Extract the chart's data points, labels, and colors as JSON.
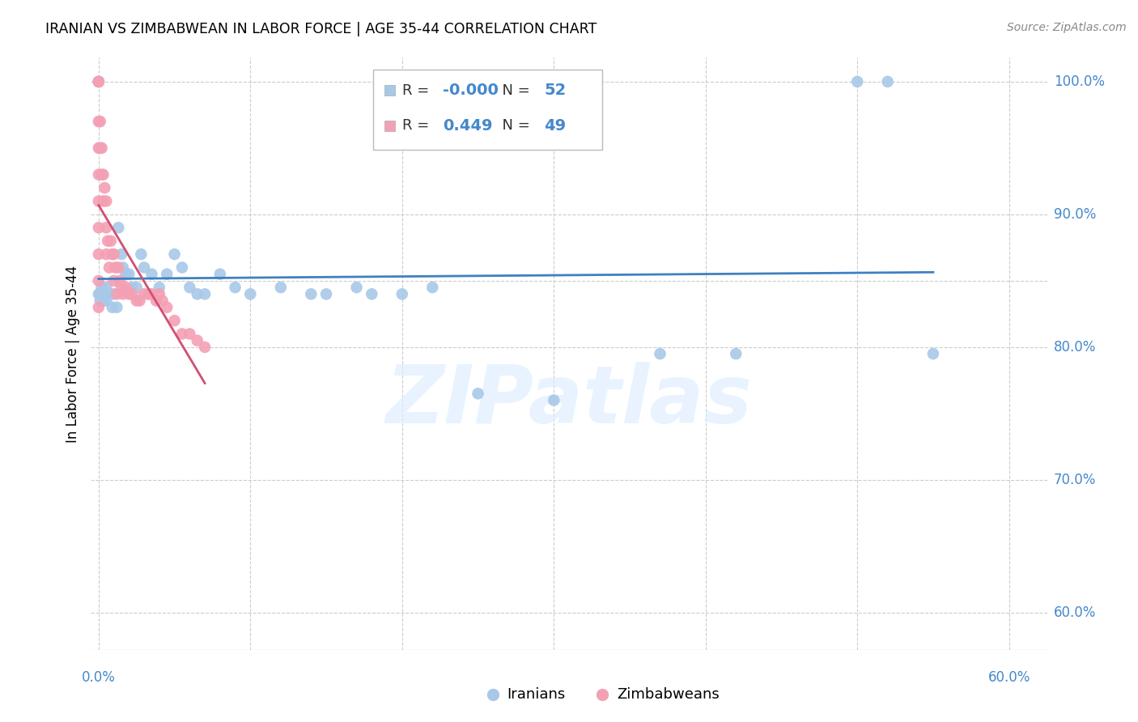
{
  "title": "IRANIAN VS ZIMBABWEAN IN LABOR FORCE | AGE 35-44 CORRELATION CHART",
  "source_text": "Source: ZipAtlas.com",
  "ylabel": "In Labor Force | Age 35-44",
  "xlim": [
    -0.005,
    0.625
  ],
  "ylim": [
    0.572,
    1.018
  ],
  "ytick_vals": [
    0.6,
    0.7,
    0.8,
    0.85,
    0.9,
    1.0
  ],
  "xtick_vals": [
    0.0,
    0.1,
    0.2,
    0.3,
    0.4,
    0.5,
    0.6
  ],
  "legend_r_iranian": "-0.000",
  "legend_n_iranian": "52",
  "legend_r_zimbabwean": "0.449",
  "legend_n_zimbabwean": "49",
  "watermark": "ZIPatlas",
  "iranian_color": "#a8c8e8",
  "zimbabwean_color": "#f4a0b4",
  "iranian_trend_color": "#4080c0",
  "zimbabwean_trend_color": "#d05070",
  "iranian_x": [
    0.0,
    0.0,
    0.0,
    0.001,
    0.001,
    0.002,
    0.003,
    0.003,
    0.004,
    0.005,
    0.005,
    0.006,
    0.007,
    0.008,
    0.009,
    0.01,
    0.012,
    0.013,
    0.015,
    0.016,
    0.018,
    0.02,
    0.022,
    0.025,
    0.028,
    0.03,
    0.033,
    0.035,
    0.04,
    0.045,
    0.05,
    0.055,
    0.06,
    0.065,
    0.07,
    0.08,
    0.09,
    0.1,
    0.12,
    0.14,
    0.15,
    0.17,
    0.18,
    0.2,
    0.22,
    0.25,
    0.3,
    0.37,
    0.42,
    0.5,
    0.52,
    0.55
  ],
  "iranian_y": [
    1.0,
    1.0,
    0.84,
    0.84,
    0.835,
    0.845,
    0.84,
    0.835,
    0.84,
    0.845,
    0.835,
    0.84,
    0.84,
    0.84,
    0.83,
    0.84,
    0.83,
    0.89,
    0.87,
    0.86,
    0.855,
    0.855,
    0.845,
    0.845,
    0.87,
    0.86,
    0.84,
    0.855,
    0.845,
    0.855,
    0.87,
    0.86,
    0.845,
    0.84,
    0.84,
    0.855,
    0.845,
    0.84,
    0.845,
    0.84,
    0.84,
    0.845,
    0.84,
    0.84,
    0.845,
    0.765,
    0.76,
    0.795,
    0.795,
    1.0,
    1.0,
    0.795
  ],
  "zimbabwean_x": [
    0.0,
    0.0,
    0.0,
    0.0,
    0.0,
    0.0,
    0.0,
    0.0,
    0.0,
    0.0,
    0.001,
    0.001,
    0.002,
    0.002,
    0.003,
    0.003,
    0.004,
    0.005,
    0.005,
    0.005,
    0.006,
    0.007,
    0.008,
    0.009,
    0.01,
    0.01,
    0.011,
    0.012,
    0.013,
    0.014,
    0.015,
    0.016,
    0.018,
    0.02,
    0.022,
    0.025,
    0.027,
    0.03,
    0.033,
    0.035,
    0.038,
    0.04,
    0.042,
    0.045,
    0.05,
    0.055,
    0.06,
    0.065,
    0.07
  ],
  "zimbabwean_y": [
    1.0,
    1.0,
    0.97,
    0.95,
    0.93,
    0.91,
    0.89,
    0.87,
    0.85,
    0.83,
    0.97,
    0.95,
    0.95,
    0.93,
    0.93,
    0.91,
    0.92,
    0.91,
    0.89,
    0.87,
    0.88,
    0.86,
    0.88,
    0.87,
    0.87,
    0.85,
    0.86,
    0.84,
    0.86,
    0.85,
    0.845,
    0.84,
    0.845,
    0.84,
    0.84,
    0.835,
    0.835,
    0.84,
    0.84,
    0.84,
    0.835,
    0.84,
    0.835,
    0.83,
    0.82,
    0.81,
    0.81,
    0.805,
    0.8
  ]
}
